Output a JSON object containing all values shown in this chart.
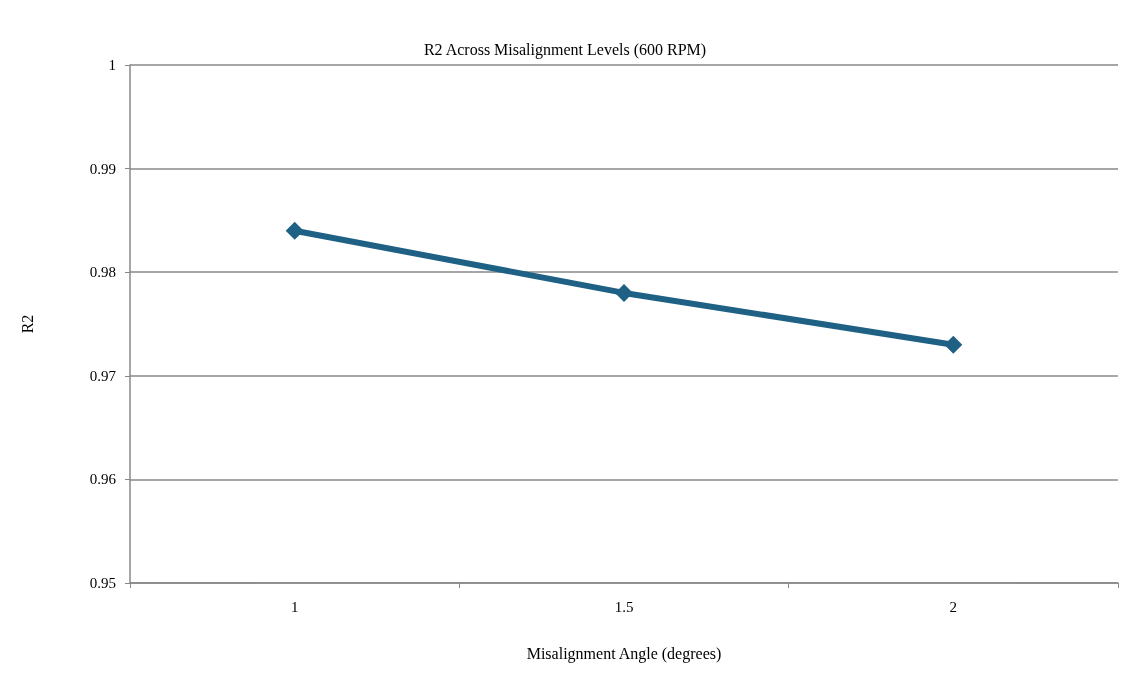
{
  "chart_data": {
    "type": "line",
    "title": "R2 Across Misalignment Levels (600 RPM)",
    "xlabel": "Misalignment Angle (degrees)",
    "ylabel": "R2",
    "categories": [
      "1",
      "1.5",
      "2"
    ],
    "series": [
      {
        "color": "#1f6085",
        "values": [
          0.984,
          0.978,
          0.973
        ]
      }
    ],
    "ylim": [
      0.95,
      1
    ],
    "yticks": [
      0.95,
      0.96,
      0.97,
      0.98,
      0.99,
      1
    ],
    "grid": "y",
    "marker": "diamond",
    "line_style": "solid"
  }
}
